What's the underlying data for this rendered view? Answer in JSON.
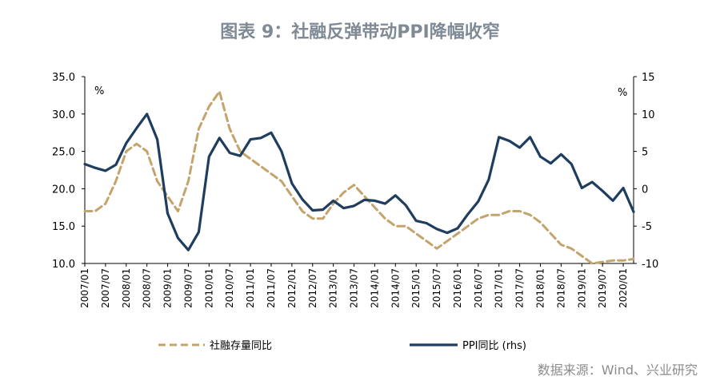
{
  "title": "图表 9：社融反弹带动PPI降幅收窄",
  "source": "数据来源：Wind、兴业研究",
  "chart_data": {
    "type": "line",
    "left_axis": {
      "unit": "%",
      "ylim": [
        10,
        35
      ],
      "ticks": [
        "35.0",
        "30.0",
        "25.0",
        "20.0",
        "15.0",
        "10.0"
      ]
    },
    "right_axis": {
      "unit": "%",
      "ylim": [
        -10,
        15
      ],
      "ticks": [
        "15",
        "10",
        "5",
        "0",
        "-5",
        "-10"
      ]
    },
    "x_ticks": [
      "2007/01",
      "2007/07",
      "2008/01",
      "2008/07",
      "2009/01",
      "2009/07",
      "2010/01",
      "2010/07",
      "2011/01",
      "2011/07",
      "2012/01",
      "2012/07",
      "2013/01",
      "2013/07",
      "2014/01",
      "2014/07",
      "2015/01",
      "2015/07",
      "2016/01",
      "2016/07",
      "2017/01",
      "2017/07",
      "2018/01",
      "2018/07",
      "2019/01",
      "2019/07",
      "2020/01"
    ],
    "x_range": [
      "2007/01",
      "2020/04"
    ],
    "series": [
      {
        "name": "社融存量同比",
        "axis": "left",
        "color": "#c4a46c",
        "dash": true,
        "x": [
          "2007/01",
          "2007/04",
          "2007/07",
          "2007/10",
          "2008/01",
          "2008/04",
          "2008/07",
          "2008/10",
          "2009/01",
          "2009/04",
          "2009/07",
          "2009/10",
          "2010/01",
          "2010/04",
          "2010/07",
          "2010/10",
          "2011/01",
          "2011/04",
          "2011/07",
          "2011/10",
          "2012/01",
          "2012/04",
          "2012/07",
          "2012/10",
          "2013/01",
          "2013/04",
          "2013/07",
          "2013/10",
          "2014/01",
          "2014/04",
          "2014/07",
          "2014/10",
          "2015/01",
          "2015/04",
          "2015/07",
          "2015/10",
          "2016/01",
          "2016/04",
          "2016/07",
          "2016/10",
          "2017/01",
          "2017/04",
          "2017/07",
          "2017/10",
          "2018/01",
          "2018/04",
          "2018/07",
          "2018/10",
          "2019/01",
          "2019/04",
          "2019/07",
          "2019/10",
          "2020/01",
          "2020/04"
        ],
        "values": [
          17,
          17,
          18,
          21,
          25,
          26,
          25,
          21,
          19,
          17,
          21,
          28,
          31,
          33,
          28,
          25,
          24,
          23,
          22,
          21,
          19,
          17,
          16,
          16,
          18,
          19.5,
          20.5,
          19,
          17.5,
          16,
          15,
          15,
          14,
          13,
          12,
          13,
          14,
          15,
          16,
          16.5,
          16.5,
          17,
          17,
          16.5,
          15.5,
          14,
          12.5,
          12,
          11,
          10,
          10.2,
          10.4,
          10.4,
          10.6
        ]
      },
      {
        "name": "PPI同比 (rhs)",
        "axis": "right",
        "color": "#1f3e5f",
        "dash": false,
        "x": [
          "2007/01",
          "2007/04",
          "2007/07",
          "2007/10",
          "2008/01",
          "2008/04",
          "2008/07",
          "2008/10",
          "2009/01",
          "2009/04",
          "2009/07",
          "2009/10",
          "2010/01",
          "2010/04",
          "2010/07",
          "2010/10",
          "2011/01",
          "2011/04",
          "2011/07",
          "2011/10",
          "2012/01",
          "2012/04",
          "2012/07",
          "2012/10",
          "2013/01",
          "2013/04",
          "2013/07",
          "2013/10",
          "2014/01",
          "2014/04",
          "2014/07",
          "2014/10",
          "2015/01",
          "2015/04",
          "2015/07",
          "2015/10",
          "2016/01",
          "2016/04",
          "2016/07",
          "2016/10",
          "2017/01",
          "2017/04",
          "2017/07",
          "2017/10",
          "2018/01",
          "2018/04",
          "2018/07",
          "2018/10",
          "2019/01",
          "2019/04",
          "2019/07",
          "2019/10",
          "2020/01",
          "2020/04"
        ],
        "values": [
          3.3,
          2.8,
          2.4,
          3.2,
          6.1,
          8.1,
          10,
          6.6,
          -3.3,
          -6.6,
          -8.2,
          -5.8,
          4.3,
          6.8,
          4.8,
          4.4,
          6.6,
          6.8,
          7.5,
          5,
          0.7,
          -1.4,
          -2.9,
          -2.8,
          -1.6,
          -2.6,
          -2.3,
          -1.5,
          -1.6,
          -2,
          -0.9,
          -2.2,
          -4.3,
          -4.6,
          -5.4,
          -5.9,
          -5.3,
          -3.4,
          -1.7,
          1.2,
          6.9,
          6.4,
          5.5,
          6.9,
          4.3,
          3.4,
          4.6,
          3.3,
          0.1,
          0.9,
          -0.3,
          -1.6,
          0.1,
          -3.1
        ]
      }
    ]
  }
}
